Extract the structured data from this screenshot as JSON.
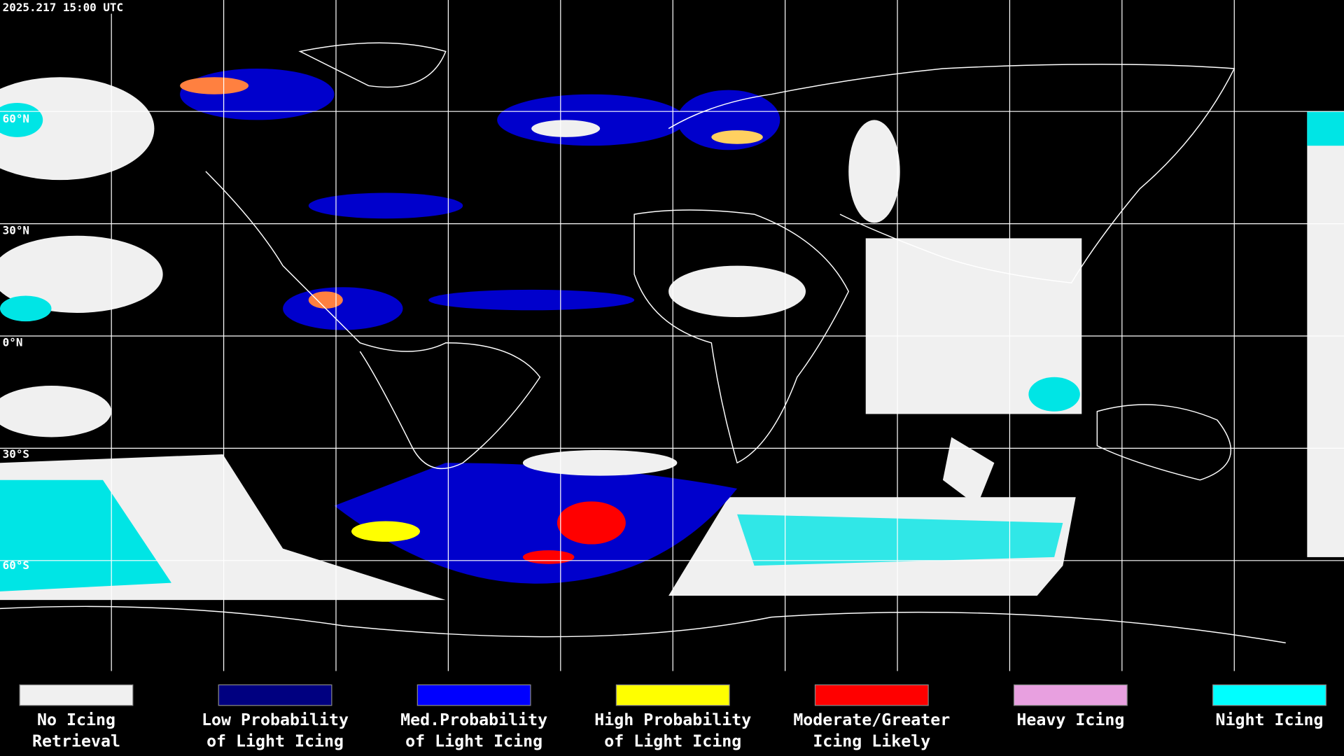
{
  "header": {
    "timestamp": "2025.217 15:00 UTC"
  },
  "map": {
    "latitude_labels": [
      "60°N",
      "30°N",
      "0°N",
      "30°S",
      "60°S"
    ]
  },
  "legend": {
    "items": [
      {
        "color": "#f0f0f0",
        "label": [
          "No Icing",
          "Retrieval"
        ]
      },
      {
        "color": "#000080",
        "label": [
          "Low Probability",
          "of Light Icing"
        ]
      },
      {
        "color": "#0000ff",
        "label": [
          "Med.Probability",
          "of Light Icing"
        ]
      },
      {
        "color": "#ffff00",
        "label": [
          "High Probability",
          "of Light Icing"
        ]
      },
      {
        "color": "#ff0000",
        "label": [
          "Moderate/Greater",
          "Icing Likely"
        ]
      },
      {
        "color": "#e8a0e0",
        "label": [
          "Heavy Icing"
        ]
      },
      {
        "color": "#00ffff",
        "label": [
          "Night Icing"
        ]
      }
    ]
  }
}
